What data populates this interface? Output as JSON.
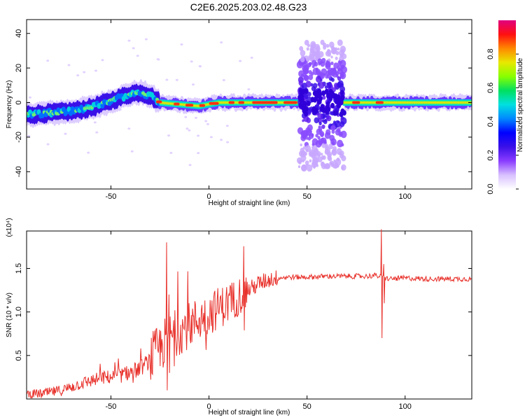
{
  "page_title": "C2E6.2025.203.02.48.G23",
  "chart_data": [
    {
      "type": "heatmap",
      "name": "spectrogram",
      "xlabel": "Height of straight line (km)",
      "ylabel": "Frequency (Hz)",
      "xlim": [
        -93,
        134
      ],
      "ylim": [
        -50,
        48
      ],
      "xticks": [
        -50,
        0,
        50,
        100
      ],
      "yticks": [
        -40,
        -20,
        0,
        20,
        40
      ],
      "colorbar": {
        "label": "Normalized spectral amplitude",
        "range": [
          0.0,
          1.0
        ],
        "ticks": [
          0.0,
          0.2,
          0.4,
          0.6,
          0.8
        ],
        "tick_labels": [
          "0.0",
          "0.2",
          "0.4",
          "0.6",
          "0.8"
        ],
        "colormap": [
          "#ffffff",
          "#d8c0ff",
          "#8a3cff",
          "#3a10e8",
          "#0000ff",
          "#0088ff",
          "#00e0e0",
          "#00e060",
          "#88ff00",
          "#e8e800",
          "#ff8800",
          "#ff1010",
          "#e00080"
        ]
      },
      "ridge": {
        "x": [
          -93,
          -80,
          -70,
          -60,
          -50,
          -40,
          -35,
          -30,
          -25,
          -15,
          -5,
          5,
          20,
          45,
          50,
          60,
          70,
          90,
          134
        ],
        "y": [
          -7,
          -6,
          -5,
          -3,
          1,
          5,
          6,
          4,
          0,
          -1,
          -2,
          0,
          0,
          0,
          0,
          0,
          0,
          0,
          0
        ]
      },
      "burst_region": {
        "x": [
          46,
          69
        ],
        "y": [
          -38,
          35
        ]
      },
      "strong_line_segments": [
        [
          -27,
          -24
        ],
        [
          -18,
          -15
        ],
        [
          -12,
          -8
        ],
        [
          -5,
          -2
        ],
        [
          0,
          5
        ],
        [
          10,
          13
        ],
        [
          15,
          18
        ],
        [
          22,
          35
        ],
        [
          38,
          45
        ],
        [
          73,
          77
        ],
        [
          85,
          89
        ]
      ]
    },
    {
      "type": "line",
      "name": "SNR",
      "xlabel": "Height of straight line (km)",
      "ylabel": "SNR (10 * v/v)",
      "y_exponent": "(x10⁴)",
      "xlim": [
        -93,
        134
      ],
      "ylim": [
        0.0,
        1.93
      ],
      "xticks": [
        -50,
        0,
        50,
        100
      ],
      "yticks": [
        0.5,
        1.0,
        1.5
      ],
      "ytick_labels": [
        "0.5",
        "1.0",
        "1.5"
      ],
      "color": "#e8302a",
      "series": [
        {
          "x": [
            -93,
            -85,
            -75,
            -65,
            -55,
            -45,
            -35,
            -30,
            -25,
            -20,
            -15,
            -10,
            -5,
            0,
            5,
            10,
            15,
            20,
            25,
            30,
            35,
            40,
            50,
            60,
            70,
            80,
            85,
            88,
            92,
            100,
            110,
            120,
            134
          ],
          "values": [
            0.06,
            0.06,
            0.1,
            0.18,
            0.24,
            0.27,
            0.35,
            0.45,
            0.58,
            0.72,
            0.78,
            0.85,
            0.92,
            0.98,
            1.05,
            1.1,
            1.18,
            1.25,
            1.32,
            1.37,
            1.39,
            1.4,
            1.4,
            1.41,
            1.41,
            1.41,
            1.42,
            1.4,
            1.38,
            1.39,
            1.38,
            1.38,
            1.38
          ],
          "spikes": [
            {
              "x": -21.5,
              "values": [
                1.8,
                0.1
              ]
            },
            {
              "x": -20.5,
              "values": [
                1.2,
                0.3
              ]
            },
            {
              "x": 88.0,
              "values": [
                1.95,
                0.7
              ]
            },
            {
              "x": 89.0,
              "values": [
                1.55,
                1.1
              ]
            }
          ]
        }
      ]
    }
  ]
}
